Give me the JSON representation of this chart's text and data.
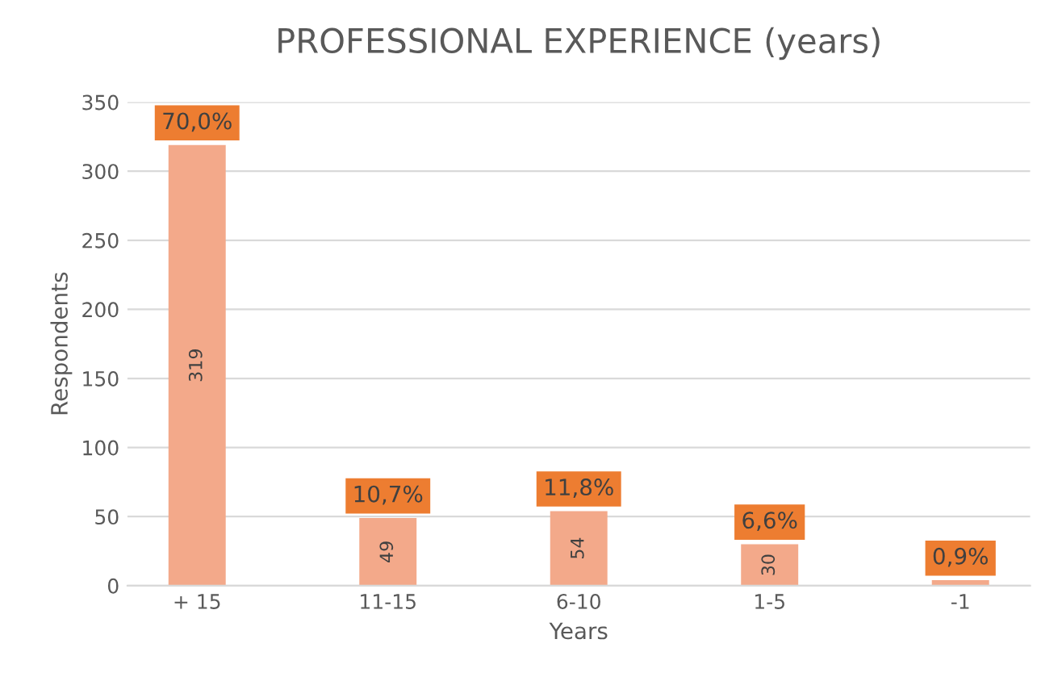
{
  "chart_data": {
    "type": "bar",
    "title": "PROFESSIONAL EXPERIENCE (years)",
    "xlabel": "Years",
    "ylabel": "Respondents",
    "categories": [
      "+ 15",
      "11-15",
      "6-10",
      "1-5",
      "-1"
    ],
    "values": [
      319,
      49,
      54,
      30,
      4
    ],
    "color": "#f3a98a",
    "value_labels": [
      "319",
      "49",
      "54",
      "30",
      null
    ],
    "annotations": [
      {
        "text": "70,0%",
        "x": "+ 15",
        "y": 319
      },
      {
        "text": "10,7%",
        "x": "11-15",
        "y": 49
      },
      {
        "text": "11,8%",
        "x": "6-10",
        "y": 54
      },
      {
        "text": "6,6%",
        "x": "1-5",
        "y": 30
      },
      {
        "text": "0,9%",
        "x": "-1",
        "y": 4
      }
    ],
    "ylim": [
      0,
      350
    ],
    "yticks": [
      0,
      50,
      100,
      150,
      200,
      250,
      300,
      350
    ],
    "grid": "y"
  }
}
